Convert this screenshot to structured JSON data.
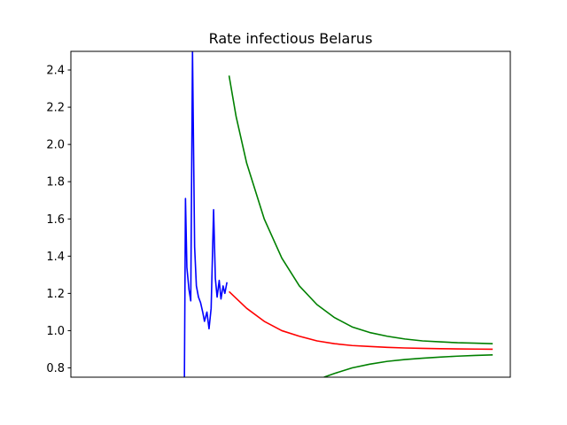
{
  "chart_data": {
    "type": "line",
    "title": "Rate infectious Belarus",
    "xlabel": "",
    "ylabel": "",
    "xlim": [
      0,
      125
    ],
    "ylim": [
      0.75,
      2.5
    ],
    "x_ticks_visible": false,
    "y_ticks": [
      0.8,
      1.0,
      1.2,
      1.4,
      1.6,
      1.8,
      2.0,
      2.2,
      2.4
    ],
    "y_tick_labels": [
      "0.8",
      "1.0",
      "1.2",
      "1.4",
      "1.6",
      "1.8",
      "2.0",
      "2.2",
      "2.4"
    ],
    "grid": false,
    "series": [
      {
        "color": "#0000ff",
        "x": [
          32.3,
          32.6,
          33.0,
          33.6,
          34.1,
          34.6,
          35.2,
          35.7,
          36.3,
          36.9,
          37.5,
          38.0,
          38.7,
          39.3,
          39.9,
          40.6,
          41.1,
          41.6,
          42.2,
          42.7,
          43.3,
          43.8,
          44.4
        ],
        "y": [
          0.75,
          1.71,
          1.34,
          1.22,
          1.16,
          2.5,
          1.45,
          1.24,
          1.18,
          1.15,
          1.1,
          1.05,
          1.1,
          1.01,
          1.12,
          1.65,
          1.28,
          1.18,
          1.27,
          1.17,
          1.24,
          1.2,
          1.26
        ]
      },
      {
        "color": "#ff0000",
        "x": [
          45,
          50,
          55,
          60,
          65,
          70,
          75,
          80,
          85,
          90,
          95,
          100,
          105,
          110,
          115,
          120
        ],
        "y": [
          1.21,
          1.12,
          1.05,
          1.0,
          0.97,
          0.945,
          0.93,
          0.92,
          0.915,
          0.91,
          0.907,
          0.905,
          0.903,
          0.902,
          0.901,
          0.9
        ]
      },
      {
        "color": "#008000",
        "x": [
          45,
          47,
          50,
          55,
          60,
          65,
          70,
          75,
          80,
          85,
          90,
          95,
          100,
          105,
          110,
          115,
          120
        ],
        "y": [
          2.37,
          2.15,
          1.9,
          1.6,
          1.39,
          1.24,
          1.14,
          1.07,
          1.02,
          0.99,
          0.97,
          0.955,
          0.945,
          0.94,
          0.935,
          0.933,
          0.93
        ]
      },
      {
        "color": "#008000",
        "x": [
          72,
          75,
          80,
          85,
          90,
          95,
          100,
          105,
          110,
          115,
          120
        ],
        "y": [
          0.75,
          0.77,
          0.8,
          0.82,
          0.835,
          0.845,
          0.852,
          0.858,
          0.863,
          0.867,
          0.87
        ]
      }
    ]
  }
}
